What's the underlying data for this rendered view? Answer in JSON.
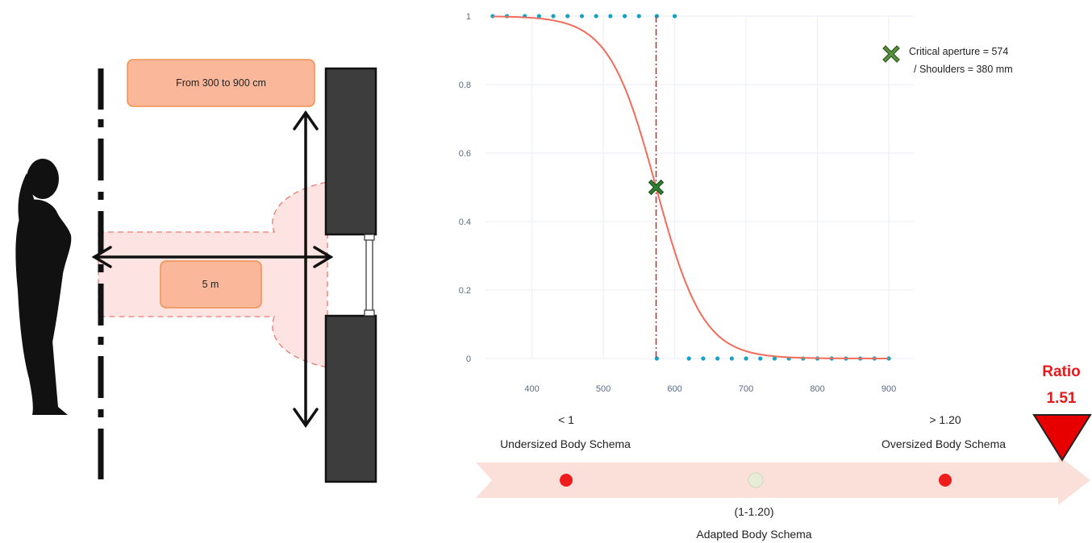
{
  "setup": {
    "distance_box_label": "From 300 to 900 cm",
    "fixed_distance_label": "5 m"
  },
  "chart_data": {
    "type": "line",
    "x_ticks": [
      400,
      500,
      600,
      700,
      800,
      900
    ],
    "y_ticks": [
      "0",
      "0.2",
      "0.4",
      "0.6",
      "0.8",
      "1"
    ],
    "xlim": [
      335,
      935
    ],
    "ylim": [
      0,
      1
    ],
    "grid": true,
    "critical_point": {
      "x": 574,
      "y": 0.5
    },
    "sigmoid": {
      "midpoint": 574,
      "scale": 33
    },
    "dots_top_x": [
      345,
      365,
      390,
      410,
      430,
      450,
      470,
      490,
      510,
      530,
      550,
      575,
      600
    ],
    "dots_bottom_x": [
      575,
      620,
      640,
      660,
      680,
      700,
      720,
      740,
      760,
      780,
      800,
      820,
      840,
      860,
      880,
      900
    ],
    "legend": {
      "line1": "Critical aperture = 574",
      "line2": "/ Shoulders = 380 mm"
    },
    "colors": {
      "curve": "#f26b5b",
      "dots": "#17a2c5",
      "vline": "#e02020",
      "marker": "#2e7d32",
      "grid": "#eef1f6"
    }
  },
  "scale": {
    "left_threshold": "< 1",
    "left_label": "Undersized Body Schema",
    "right_threshold": "> 1.20",
    "right_label": "Oversized Body Schema",
    "mid_threshold": "(1-1.20)",
    "mid_label": "Adapted Body Schema",
    "ratio_title": "Ratio",
    "ratio_value": "1.51",
    "colors": {
      "arrow": "#fbe0da",
      "dot_red": "#ee1c1c",
      "dot_mid": "#e6ecd8",
      "ratio_marker": "#e60000"
    }
  }
}
